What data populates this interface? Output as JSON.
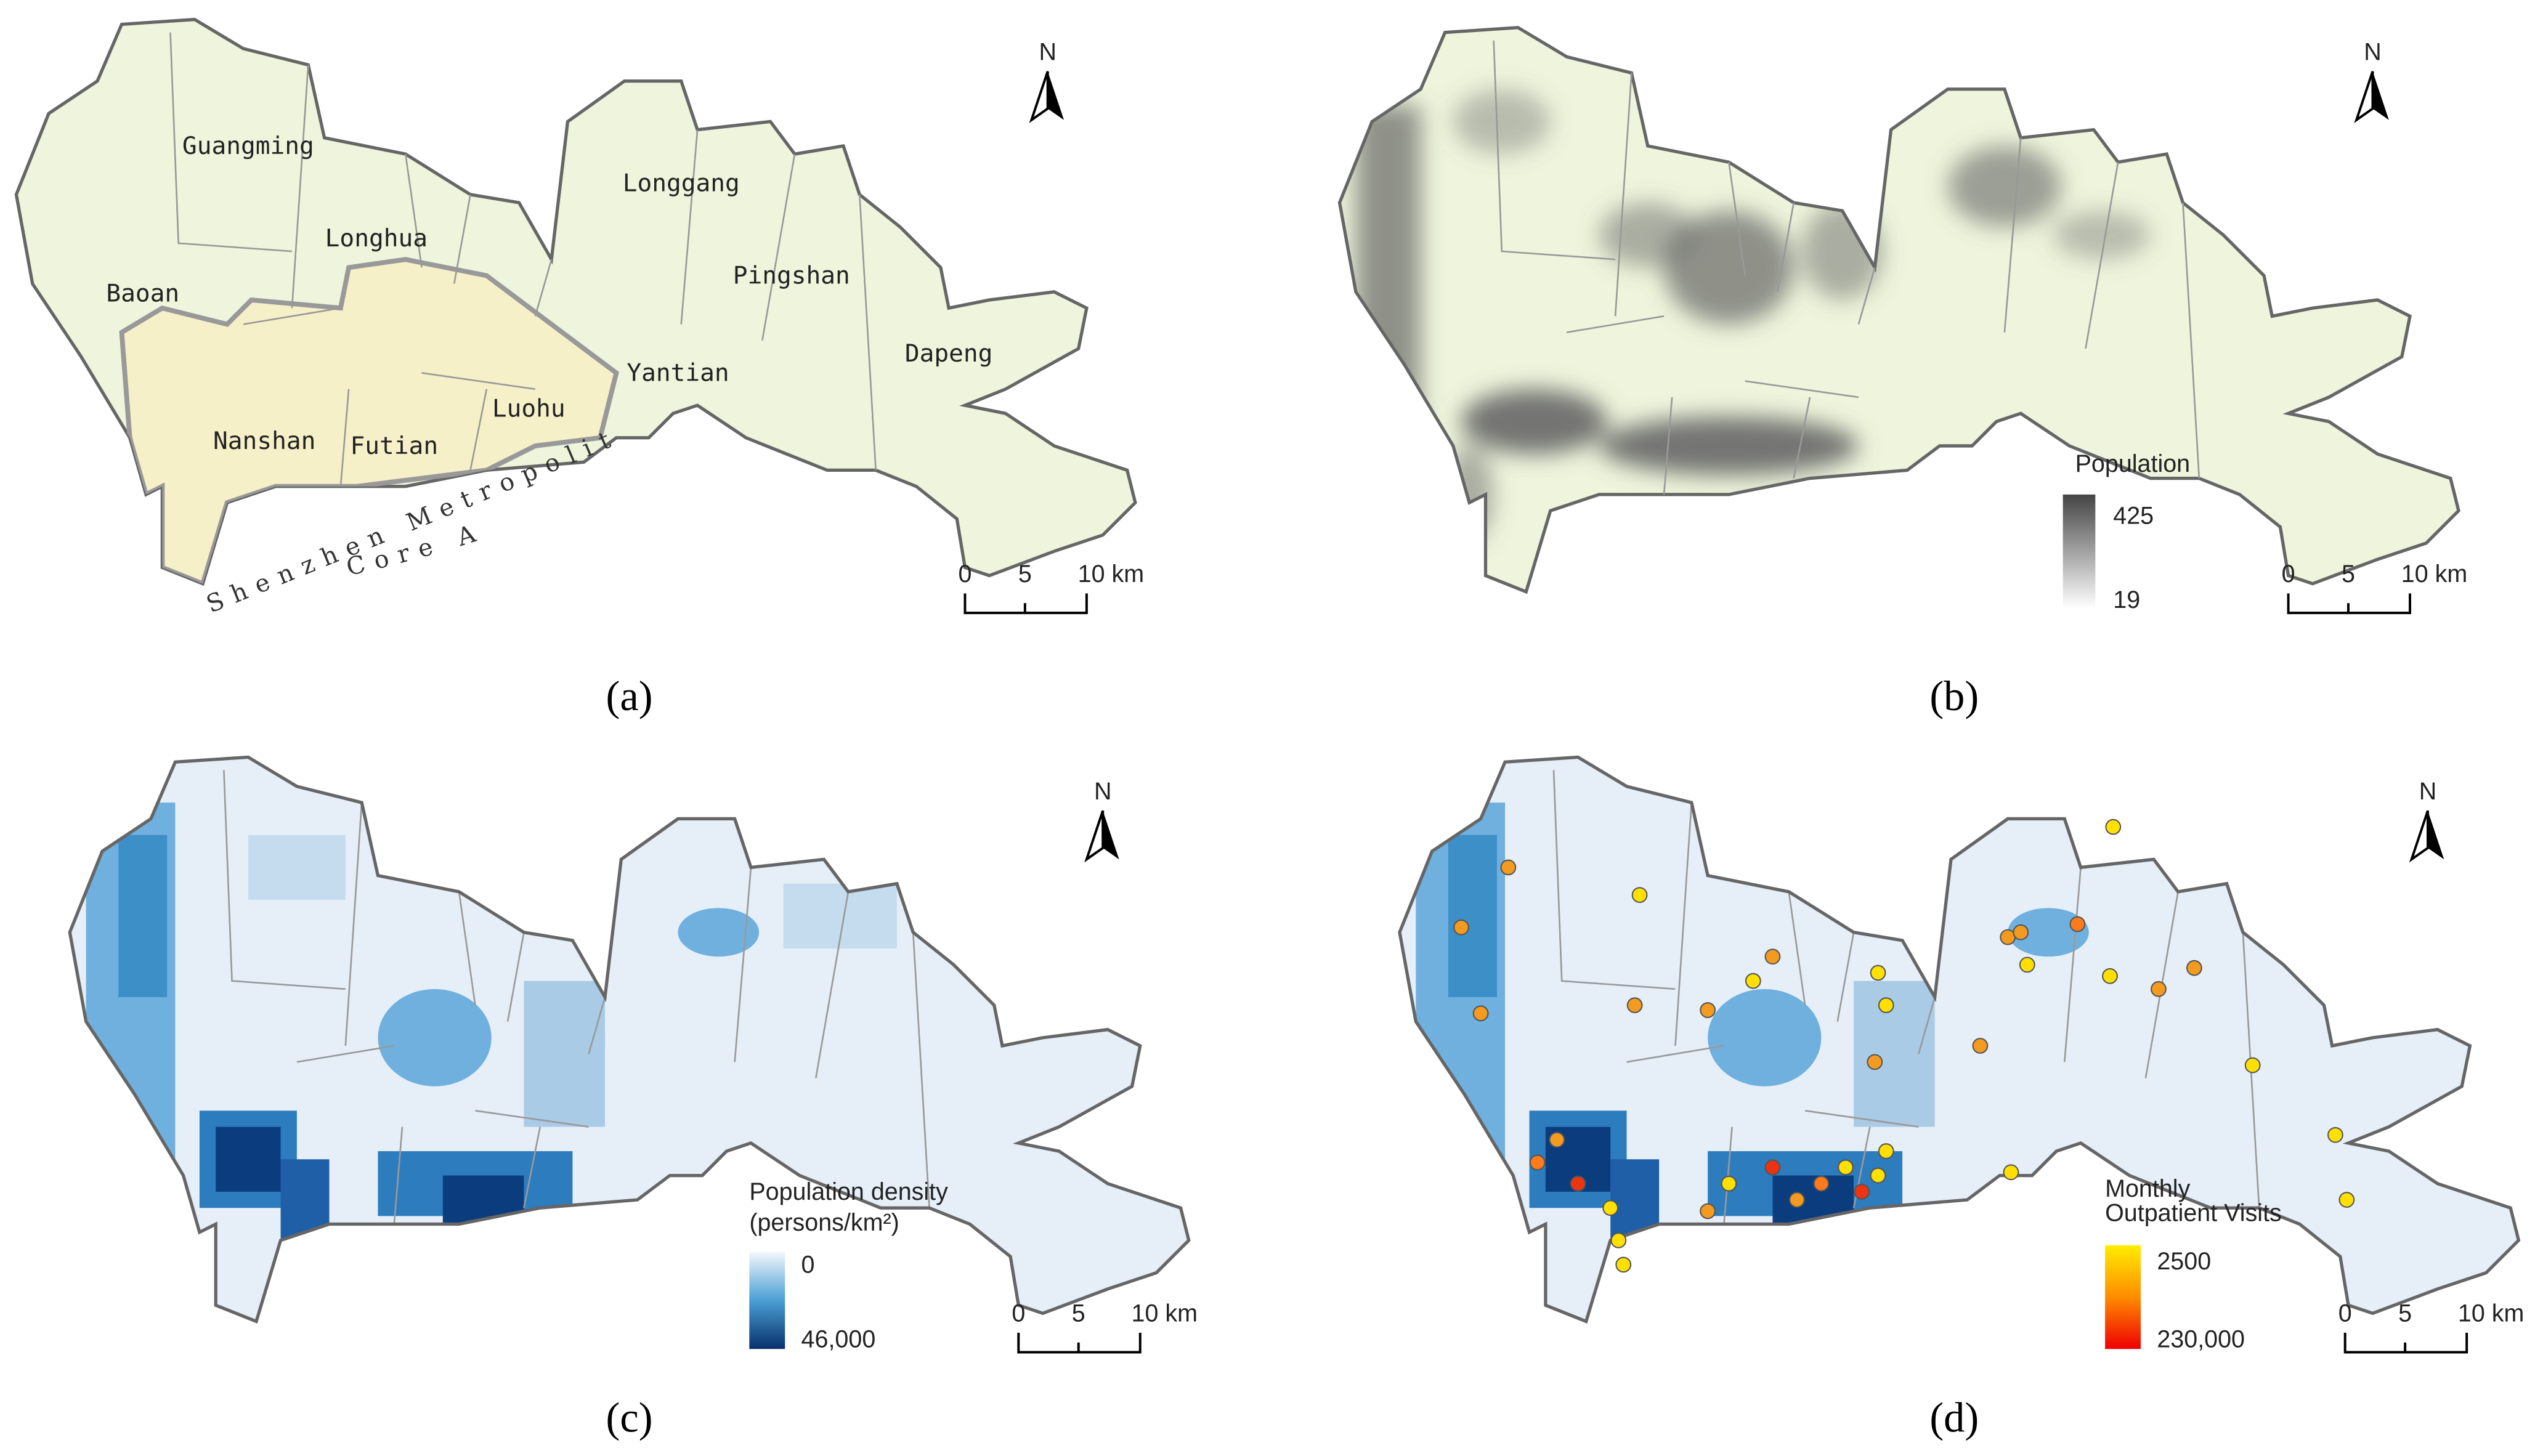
{
  "panels": {
    "a": {
      "label": "(a)",
      "districts": [
        "Guangming",
        "Longhua",
        "Baoan",
        "Longgang",
        "Pingshan",
        "Yantian",
        "Dapeng",
        "Nanshan",
        "Futian",
        "Luohu"
      ],
      "core_area": [
        "Shenzhen Metropolitan",
        "Core Area"
      ]
    },
    "b": {
      "label": "(b)",
      "legend": {
        "title": "Population",
        "max": "425",
        "min": "19"
      }
    },
    "c": {
      "label": "(c)",
      "legend": {
        "title": "Population density",
        "unit": "(persons/km²)",
        "min": "0",
        "max": "46,000"
      }
    },
    "d": {
      "label": "(d)",
      "legend": {
        "title": [
          "Monthly",
          "Outpatient Visits"
        ],
        "min": "2500",
        "max": "230,000"
      }
    }
  },
  "north": "N",
  "scale_bar": [
    "0",
    "5",
    "10 km"
  ]
}
